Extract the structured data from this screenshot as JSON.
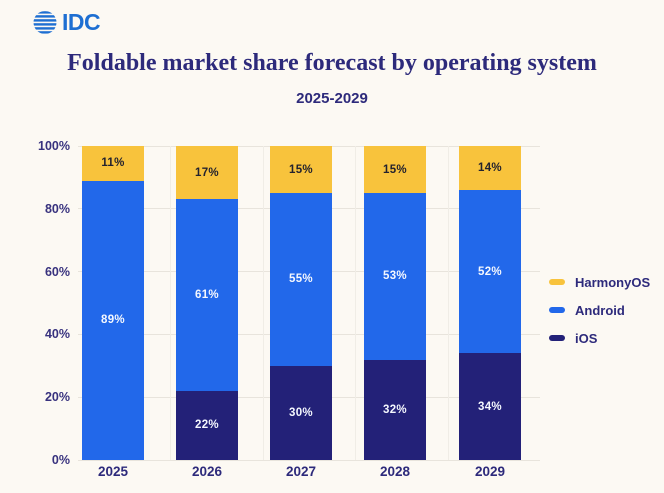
{
  "logo": {
    "brand": "IDC"
  },
  "header": {
    "title": "Foldable market share forecast by operating system",
    "subtitle": "2025-2029"
  },
  "colors": {
    "background": "#FCF9F3",
    "android": "#2268EA",
    "ios": "#232178",
    "harmonyos": "#F8C33C",
    "gridline": "#E8E4DC",
    "gridline_vertical": "#F0EDE6",
    "navy_text": "#2D2A7B",
    "axis_label": "#38327E",
    "label_light": "#F4F7FE",
    "label_dark": "#23222E",
    "idc_blue": "#1E6FD2"
  },
  "chart_data": {
    "type": "bar",
    "stacked": true,
    "title": "Foldable market share forecast by operating system",
    "subtitle": "2025-2029",
    "unit": "%",
    "categories": [
      "2025",
      "2026",
      "2027",
      "2028",
      "2029"
    ],
    "series": [
      {
        "name": "iOS",
        "color_key": "ios",
        "label_color_key": "label_light",
        "values": [
          0,
          22,
          30,
          32,
          34
        ]
      },
      {
        "name": "Android",
        "color_key": "android",
        "label_color_key": "label_light",
        "values": [
          89,
          61,
          55,
          53,
          52
        ]
      },
      {
        "name": "HarmonyOS",
        "color_key": "harmonyos",
        "label_color_key": "label_dark",
        "values": [
          11,
          17,
          15,
          15,
          14
        ]
      }
    ],
    "ylim": [
      0,
      100
    ],
    "yticks": [
      0,
      20,
      40,
      60,
      80,
      100
    ],
    "ytick_suffix": "%",
    "grid": true,
    "legend_position": "right",
    "legend": [
      {
        "label": "HarmonyOS",
        "color_key": "harmonyos"
      },
      {
        "label": "Android",
        "color_key": "android"
      },
      {
        "label": "iOS",
        "color_key": "ios"
      }
    ]
  }
}
